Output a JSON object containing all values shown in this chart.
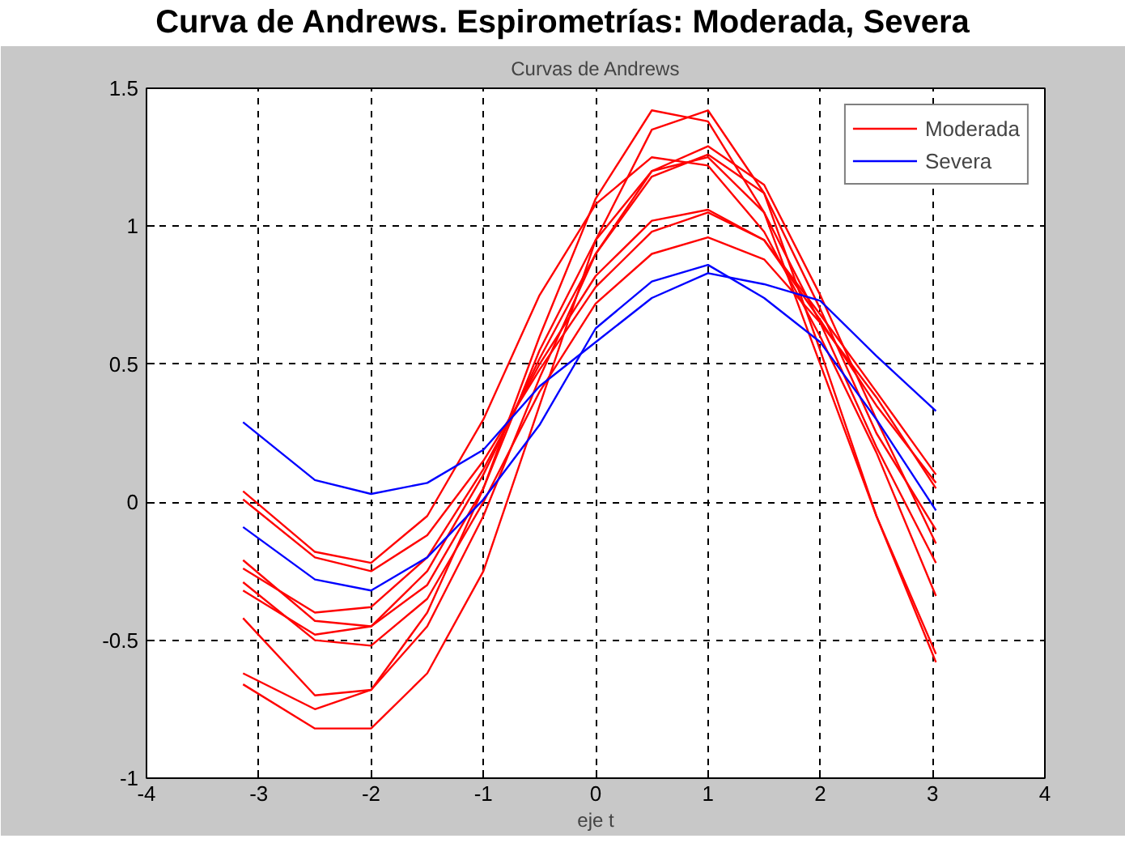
{
  "chart_data": {
    "type": "line",
    "title": "Curva de Andrews. Espirometrías: Moderada, Severa",
    "subtitle": "Curvas de Andrews",
    "xlabel": "eje t",
    "x": [
      -3.14,
      -2.5,
      -2,
      -1.5,
      -1,
      -0.5,
      0,
      0.5,
      1,
      1.5,
      2,
      2.5,
      3.03
    ],
    "series": [
      {
        "name": "Moderada",
        "color": "#ff0000",
        "values": [
          -0.62,
          -0.75,
          -0.68,
          -0.4,
          0.05,
          0.6,
          1.1,
          1.42,
          1.38,
          1.05,
          0.5,
          -0.05,
          -0.55
        ]
      },
      {
        "color": "#ff0000",
        "values": [
          -0.66,
          -0.82,
          -0.82,
          -0.62,
          -0.25,
          0.35,
          0.95,
          1.35,
          1.42,
          1.12,
          0.55,
          -0.05,
          -0.58
        ]
      },
      {
        "color": "#ff0000",
        "values": [
          -0.42,
          -0.7,
          -0.68,
          -0.45,
          -0.05,
          0.45,
          0.9,
          1.2,
          1.29,
          1.15,
          0.75,
          0.3,
          -0.15
        ]
      },
      {
        "color": "#ff0000",
        "values": [
          -0.21,
          -0.43,
          -0.45,
          -0.3,
          0.05,
          0.55,
          0.95,
          1.2,
          1.25,
          1.05,
          0.65,
          0.2,
          -0.22
        ]
      },
      {
        "color": "#ff0000",
        "values": [
          0.04,
          -0.18,
          -0.22,
          -0.05,
          0.3,
          0.75,
          1.08,
          1.25,
          1.22,
          0.98,
          0.6,
          0.18,
          -0.34
        ]
      },
      {
        "color": "#ff0000",
        "values": [
          -0.24,
          -0.4,
          -0.38,
          -0.2,
          0.12,
          0.5,
          0.82,
          1.02,
          1.06,
          0.95,
          0.68,
          0.4,
          0.1
        ]
      },
      {
        "color": "#ff0000",
        "values": [
          0.01,
          -0.2,
          -0.25,
          -0.12,
          0.15,
          0.48,
          0.78,
          0.98,
          1.05,
          0.95,
          0.66,
          0.35,
          0.07
        ]
      },
      {
        "color": "#ff0000",
        "values": [
          -0.29,
          -0.5,
          -0.52,
          -0.35,
          0.0,
          0.4,
          0.72,
          0.9,
          0.96,
          0.88,
          0.65,
          0.38,
          0.05
        ]
      },
      {
        "color": "#ff0000",
        "values": [
          -0.32,
          -0.48,
          -0.45,
          -0.25,
          0.1,
          0.52,
          0.9,
          1.18,
          1.26,
          1.12,
          0.7,
          0.25,
          -0.1
        ]
      },
      {
        "name": "Severa",
        "color": "#0000ff",
        "values": [
          0.29,
          0.08,
          0.03,
          0.07,
          0.19,
          0.42,
          0.58,
          0.74,
          0.83,
          0.79,
          0.73,
          0.53,
          0.33
        ]
      },
      {
        "color": "#0000ff",
        "values": [
          -0.09,
          -0.28,
          -0.32,
          -0.2,
          0.01,
          0.28,
          0.63,
          0.8,
          0.86,
          0.74,
          0.58,
          0.3,
          -0.03
        ]
      }
    ],
    "xlim": [
      -4,
      4
    ],
    "ylim": [
      -1,
      1.5
    ],
    "xticks": [
      -4,
      -3,
      -2,
      -1,
      0,
      1,
      2,
      3,
      4
    ],
    "yticks": [
      -1,
      -0.5,
      0,
      0.5,
      1,
      1.5
    ],
    "grid": true,
    "legend": "top right",
    "line_style": "solid"
  }
}
